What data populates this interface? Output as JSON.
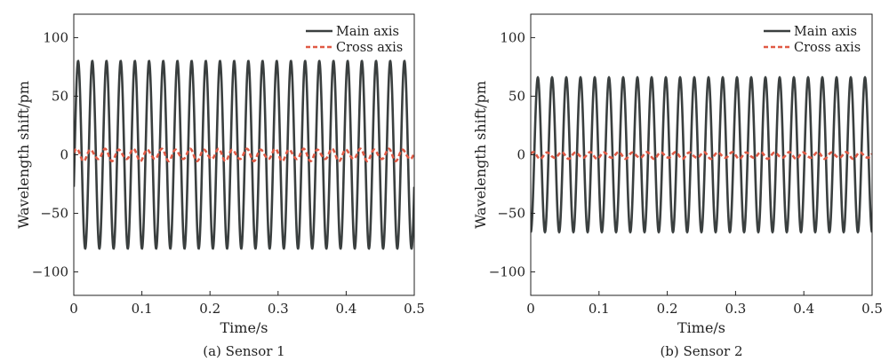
{
  "chart_data": [
    {
      "type": "line",
      "caption": "(a) Sensor 1",
      "xlabel": "Time/s",
      "ylabel": "Wavelength shift/pm",
      "xlim": [
        0,
        0.5
      ],
      "ylim": [
        -120,
        120
      ],
      "xticks": [
        0,
        0.1,
        0.2,
        0.3,
        0.4,
        0.5
      ],
      "xtick_labels": [
        "0",
        "0.1",
        "0.2",
        "0.3",
        "0.4",
        "0.5"
      ],
      "yticks": [
        100,
        50,
        0,
        -50,
        -100
      ],
      "ytick_labels": [
        "100",
        "50",
        "0",
        "−50",
        "−100"
      ],
      "legend_position": "top-right",
      "series": [
        {
          "name": "Main axis",
          "style": "solid",
          "color": "#3a3f3f",
          "waveform": {
            "amplitude": 80,
            "frequency_hz": 48,
            "offset": 0,
            "phase_deg": -20
          }
        },
        {
          "name": "Cross axis",
          "style": "dashed",
          "color": "#e05a45",
          "waveform": {
            "amplitude": 5.5,
            "frequency_hz": 48,
            "offset": 0,
            "phase_deg": 20,
            "beat_frequency_hz": 12,
            "beat_depth": 0.45
          }
        }
      ]
    },
    {
      "type": "line",
      "caption": "(b) Sensor 2",
      "xlabel": "Time/s",
      "ylabel": "Wavelength shift/pm",
      "xlim": [
        0,
        0.5
      ],
      "ylim": [
        -120,
        120
      ],
      "xticks": [
        0,
        0.1,
        0.2,
        0.3,
        0.4,
        0.5
      ],
      "xtick_labels": [
        "0",
        "0.1",
        "0.2",
        "0.3",
        "0.4",
        "0.5"
      ],
      "yticks": [
        100,
        50,
        0,
        -50,
        -100
      ],
      "ytick_labels": [
        "100",
        "50",
        "0",
        "−50",
        "−100"
      ],
      "legend_position": "top-right",
      "series": [
        {
          "name": "Main axis",
          "style": "solid",
          "color": "#3a3f3f",
          "waveform": {
            "amplitude": 66,
            "frequency_hz": 48,
            "offset": 0,
            "phase_deg": -90
          }
        },
        {
          "name": "Cross axis",
          "style": "dashed",
          "color": "#e05a45",
          "waveform": {
            "amplitude": 3,
            "frequency_hz": 48,
            "offset": -0.5,
            "phase_deg": 30,
            "beat_frequency_hz": 12,
            "beat_depth": 0.4
          }
        }
      ]
    }
  ]
}
